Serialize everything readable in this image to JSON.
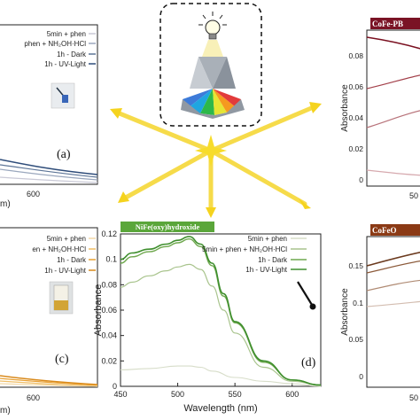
{
  "panels": {
    "a": {
      "panel_letter": "(a)",
      "legend": [
        "5min + phen",
        "phen + NH₂OH·HCl",
        "1h - Dark",
        "1h - UV-Light"
      ],
      "tick_x": [
        "600"
      ],
      "xlabel_fragment": "m)"
    },
    "c": {
      "panel_letter": "(c)",
      "legend": [
        "5min + phen",
        "en + NH₂OH·HCl",
        "1h - Dark",
        "1h - UV-Light"
      ],
      "tick_x": [
        "600"
      ],
      "xlabel_fragment": "m)"
    },
    "d": {
      "panel_letter": "(d)",
      "title_tag": "NiFe(oxy)hydroxide"
    },
    "b": {
      "title_tag": "CoFe-PB",
      "ylabel": "Absorbance",
      "yticks": [
        "0.08",
        "0.06",
        "0.04",
        "0.02",
        "0"
      ],
      "tick_x": [
        "50"
      ]
    },
    "e": {
      "title_tag": "CoFeO",
      "ylabel": "Absorbance",
      "yticks": [
        "0.15",
        "0.1",
        "0.05",
        "0"
      ],
      "tick_x": [
        "50"
      ]
    }
  },
  "colors": {
    "panel_a": [
      "#c9c9d6",
      "#9aa7bd",
      "#5d7597",
      "#2f4d7a"
    ],
    "panel_c": [
      "#f3d9a8",
      "#f0be65",
      "#e9a031",
      "#d98a1c"
    ],
    "panel_d": [
      "#d7ddc9",
      "#a9c48d",
      "#6fa84e",
      "#3f8f2e"
    ],
    "panel_b": [
      "#7a1020",
      "#a3404a",
      "#b8737a",
      "#d6a9ae"
    ],
    "panel_e": [
      "#6b3a1e",
      "#8c5a3a",
      "#b08b74",
      "#d3bdb0"
    ],
    "accent_star": "#f5d31e",
    "tag_green": "#5aa63a",
    "tag_maroon": "#7a1325",
    "tag_brown": "#8b3a15"
  },
  "chart_data": {
    "type": "line",
    "title": "NiFe(oxy)hydroxide",
    "xlabel": "Wavelength (nm)",
    "ylabel": "Absorbance",
    "xlim": [
      450,
      625
    ],
    "ylim": [
      0,
      0.12
    ],
    "xticks": [
      "450",
      "500",
      "550",
      "600"
    ],
    "yticks": [
      "0",
      "0.02",
      "0.04",
      "0.06",
      "0.08",
      "0.1",
      "0.12"
    ],
    "grid": false,
    "legend_position": "top-right",
    "series": [
      {
        "name": "5min + phen",
        "x": [
          450,
          475,
          500,
          510,
          520,
          530,
          550,
          575,
          600,
          625
        ],
        "values": [
          0.013,
          0.014,
          0.016,
          0.016,
          0.015,
          0.012,
          0.007,
          0.004,
          0.002,
          0.0
        ]
      },
      {
        "name": "5min + phen + NH₂OH·HCl",
        "x": [
          450,
          460,
          475,
          490,
          500,
          510,
          520,
          530,
          540,
          550,
          575,
          600,
          625
        ],
        "values": [
          0.078,
          0.082,
          0.087,
          0.091,
          0.094,
          0.096,
          0.092,
          0.079,
          0.06,
          0.042,
          0.015,
          0.004,
          0.001
        ]
      },
      {
        "name": "1h - Dark",
        "x": [
          450,
          460,
          475,
          490,
          500,
          510,
          520,
          530,
          540,
          550,
          575,
          600,
          625
        ],
        "values": [
          0.097,
          0.102,
          0.106,
          0.11,
          0.113,
          0.116,
          0.11,
          0.095,
          0.071,
          0.05,
          0.019,
          0.005,
          0.001
        ]
      },
      {
        "name": "1h - UV-Light",
        "x": [
          450,
          460,
          475,
          490,
          500,
          510,
          520,
          530,
          540,
          550,
          575,
          600,
          625
        ],
        "values": [
          0.1,
          0.105,
          0.108,
          0.112,
          0.115,
          0.118,
          0.112,
          0.097,
          0.073,
          0.051,
          0.02,
          0.005,
          0.001
        ]
      }
    ]
  }
}
